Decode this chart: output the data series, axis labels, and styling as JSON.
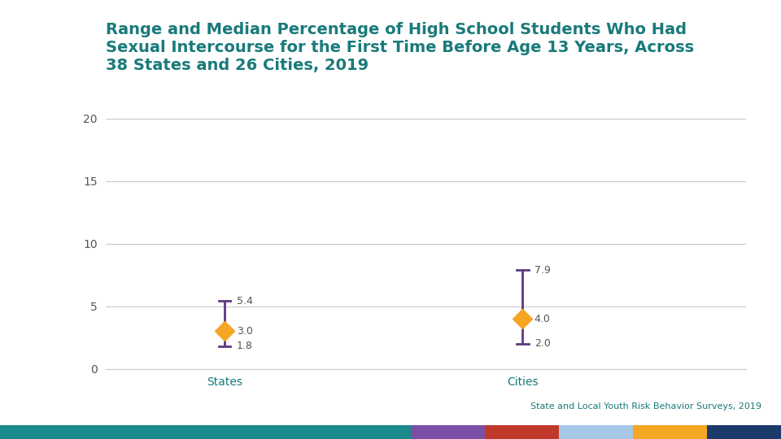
{
  "title": "Range and Median Percentage of High School Students Who Had\nSexual Intercourse for the First Time Before Age 13 Years, Across\n38 States and 26 Cities, 2019",
  "title_color": "#1a7a7a",
  "categories": [
    "States",
    "Cities"
  ],
  "medians": [
    3.0,
    4.0
  ],
  "highs": [
    5.4,
    7.9
  ],
  "lows": [
    1.8,
    2.0
  ],
  "marker_color": "#f5a623",
  "line_color": "#5c3880",
  "ylim": [
    0,
    20
  ],
  "yticks": [
    0,
    5,
    10,
    15,
    20
  ],
  "footnote": "State and Local Youth Risk Behavior Surveys, 2019",
  "footnote_color": "#1a7a7a",
  "bar_colors": [
    "#1a8a8a",
    "#7b4fa6",
    "#c0392b",
    "#a8c8e8",
    "#f5a623",
    "#1a3a6a"
  ],
  "bar_widths_norm": [
    0.5,
    0.09,
    0.09,
    0.09,
    0.09,
    0.09
  ],
  "bg_color": "#ffffff",
  "plot_bg_color": "#ffffff",
  "grid_color": "#c8c8c8",
  "tick_label_color": "#555555",
  "title_fontsize": 14,
  "tick_fontsize": 10,
  "annot_fontsize": 9,
  "footnote_fontsize": 8,
  "x_positions": [
    1,
    3
  ],
  "xlim": [
    0.2,
    4.5
  ]
}
